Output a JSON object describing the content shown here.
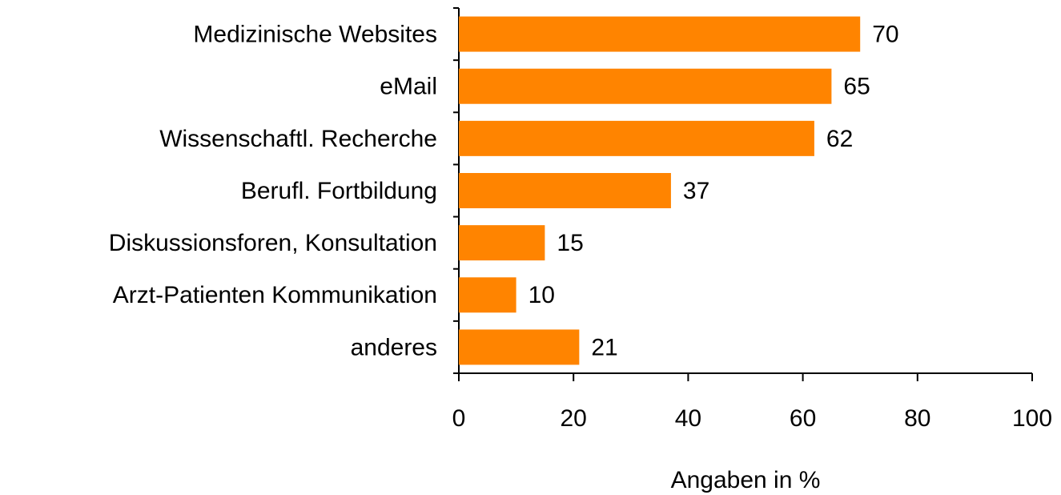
{
  "chart_data": {
    "type": "bar",
    "orientation": "horizontal",
    "categories": [
      "Medizinische Websites",
      "eMail",
      "Wissenschaftl. Recherche",
      "Berufl. Fortbildung",
      "Diskussionsforen, Konsultation",
      "Arzt-Patienten Kommunikation",
      "anderes"
    ],
    "values": [
      70,
      65,
      62,
      37,
      15,
      10,
      21
    ],
    "color": "#ff8400",
    "x_label": "Angaben in %",
    "xlim": [
      0,
      100
    ],
    "xticks": [
      0,
      20,
      40,
      60,
      80,
      100
    ],
    "grid": false
  }
}
